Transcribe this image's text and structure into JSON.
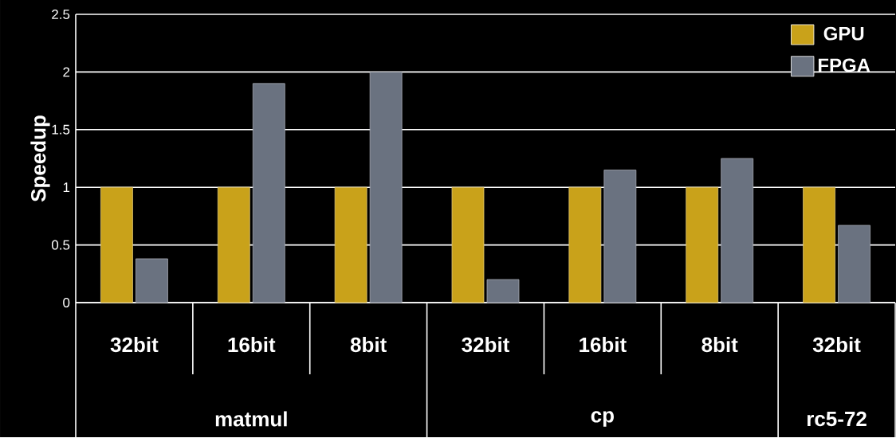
{
  "chart_data": {
    "type": "bar",
    "ylabel": "Speedup",
    "categories": [
      "32bit",
      "16bit",
      "8bit",
      "32bit",
      "16bit",
      "8bit",
      "32bit"
    ],
    "series": [
      {
        "name": "GPU",
        "color": "#c9a21a",
        "values": [
          1,
          1,
          1,
          1,
          1,
          1,
          1
        ]
      },
      {
        "name": "FPGA",
        "color": "#6a7280",
        "values": [
          0.38,
          1.9,
          2.0,
          0.2,
          1.15,
          1.25,
          0.67
        ]
      }
    ],
    "annotations": [
      "matmul",
      "cp",
      "rc5-72"
    ],
    "ylim": [
      0,
      2.5
    ],
    "yticks": [
      0,
      0.5,
      1,
      1.5,
      2,
      2.5
    ],
    "grid": "y",
    "legend": "top right"
  }
}
